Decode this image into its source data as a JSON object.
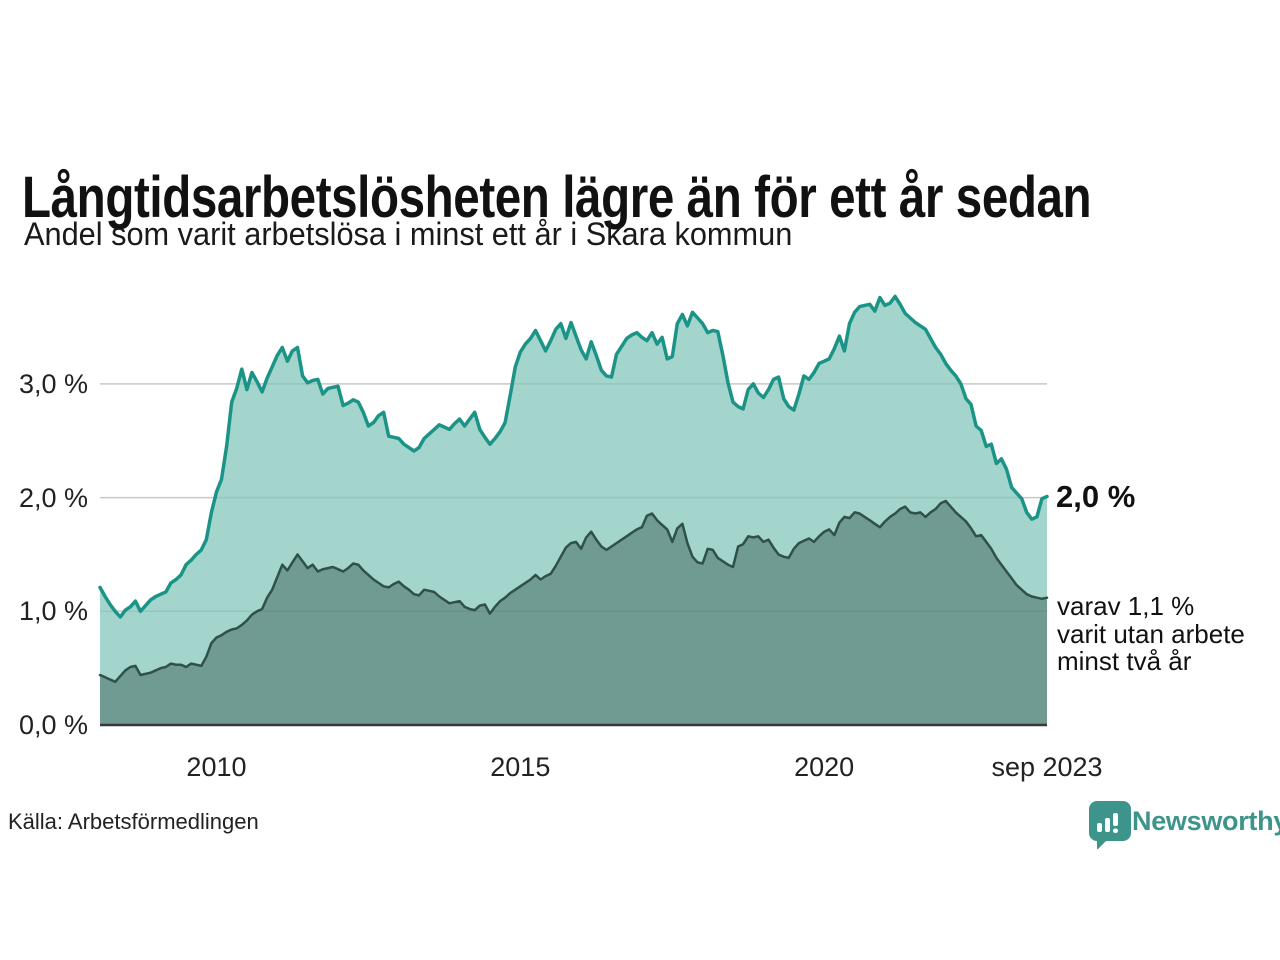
{
  "header": {
    "title": "Långtidsarbetslösheten lägre än för ett år sedan",
    "subtitle": "Andel som varit arbetslösa i minst ett år i Skara kommun"
  },
  "chart": {
    "y_ticks": [
      {
        "label": "3,0 %",
        "value": 3.0
      },
      {
        "label": "2,0 %",
        "value": 2.0
      },
      {
        "label": "1,0 %",
        "value": 1.0
      },
      {
        "label": "0,0 %",
        "value": 0.0
      }
    ],
    "x_ticks": [
      {
        "label": "2010",
        "month_index": 23
      },
      {
        "label": "2015",
        "month_index": 83
      },
      {
        "label": "2020",
        "month_index": 143
      },
      {
        "label": "sep 2023",
        "month_index": 187
      }
    ],
    "annotation_end": {
      "label": "2,0 %"
    },
    "annotation_sub": {
      "lines": [
        "varav 1,1 %",
        "varit utan arbete",
        "minst två år"
      ]
    },
    "colors": {
      "series_min1yr_fill": "#a3d5cd",
      "series_min1yr_line": "#1b9487",
      "series_min2yr_fill": "#6f9b93",
      "series_min2yr_line": "#30504a",
      "gridline": "#d9d9d9",
      "gridline_overlay": "rgba(60,60,60,0.10)",
      "baseline": "#383838"
    }
  },
  "chart_data": {
    "type": "area",
    "title": "Långtidsarbetslösheten lägre än för ett år sedan",
    "subtitle": "Andel som varit arbetslösa i minst ett år i Skara kommun",
    "unit": "%",
    "interval": "monthly",
    "x_start": "2008-02",
    "x_end": "2023-09",
    "ylim": [
      0,
      4
    ],
    "grid": "horizontal",
    "series": [
      {
        "name": "Andel arbetslösa minst ett år",
        "end_label": "2,0 %",
        "values": [
          1.21,
          1.13,
          1.06,
          1.0,
          0.95,
          1.01,
          1.04,
          1.09,
          1.0,
          1.05,
          1.1,
          1.13,
          1.15,
          1.17,
          1.25,
          1.28,
          1.32,
          1.41,
          1.45,
          1.5,
          1.54,
          1.63,
          1.87,
          2.05,
          2.16,
          2.45,
          2.84,
          2.96,
          3.13,
          2.95,
          3.1,
          3.02,
          2.93,
          3.05,
          3.15,
          3.25,
          3.32,
          3.2,
          3.29,
          3.32,
          3.07,
          3.01,
          3.03,
          3.04,
          2.91,
          2.96,
          2.97,
          2.98,
          2.81,
          2.83,
          2.86,
          2.84,
          2.75,
          2.63,
          2.66,
          2.72,
          2.75,
          2.54,
          2.53,
          2.52,
          2.47,
          2.44,
          2.41,
          2.44,
          2.52,
          2.56,
          2.6,
          2.64,
          2.62,
          2.6,
          2.65,
          2.69,
          2.63,
          2.69,
          2.75,
          2.6,
          2.53,
          2.47,
          2.52,
          2.58,
          2.66,
          2.9,
          3.15,
          3.28,
          3.35,
          3.4,
          3.47,
          3.38,
          3.29,
          3.38,
          3.48,
          3.53,
          3.4,
          3.54,
          3.42,
          3.3,
          3.22,
          3.37,
          3.25,
          3.12,
          3.07,
          3.06,
          3.26,
          3.33,
          3.4,
          3.43,
          3.45,
          3.41,
          3.38,
          3.45,
          3.35,
          3.41,
          3.22,
          3.24,
          3.53,
          3.61,
          3.51,
          3.63,
          3.58,
          3.53,
          3.45,
          3.47,
          3.46,
          3.25,
          3.01,
          2.84,
          2.8,
          2.78,
          2.95,
          3.0,
          2.92,
          2.88,
          2.95,
          3.04,
          3.06,
          2.87,
          2.8,
          2.77,
          2.91,
          3.07,
          3.04,
          3.1,
          3.18,
          3.2,
          3.22,
          3.31,
          3.42,
          3.29,
          3.53,
          3.63,
          3.68,
          3.69,
          3.7,
          3.64,
          3.76,
          3.69,
          3.71,
          3.77,
          3.7,
          3.62,
          3.58,
          3.54,
          3.51,
          3.48,
          3.4,
          3.32,
          3.26,
          3.18,
          3.12,
          3.07,
          3.0,
          2.87,
          2.82,
          2.63,
          2.59,
          2.45,
          2.47,
          2.3,
          2.34,
          2.25,
          2.09,
          2.04,
          1.99,
          1.87,
          1.81,
          1.83,
          1.99,
          2.01
        ]
      },
      {
        "name": "varav utan arbete minst två år",
        "end_label": "varav 1,1 % varit utan arbete minst två år",
        "values": [
          0.44,
          0.42,
          0.4,
          0.38,
          0.43,
          0.48,
          0.51,
          0.52,
          0.44,
          0.45,
          0.46,
          0.48,
          0.5,
          0.51,
          0.54,
          0.53,
          0.53,
          0.51,
          0.54,
          0.53,
          0.52,
          0.6,
          0.72,
          0.77,
          0.79,
          0.82,
          0.84,
          0.85,
          0.88,
          0.92,
          0.97,
          1.0,
          1.02,
          1.12,
          1.19,
          1.3,
          1.41,
          1.36,
          1.43,
          1.5,
          1.44,
          1.38,
          1.41,
          1.35,
          1.37,
          1.38,
          1.39,
          1.37,
          1.35,
          1.38,
          1.42,
          1.41,
          1.36,
          1.32,
          1.28,
          1.25,
          1.22,
          1.21,
          1.24,
          1.26,
          1.22,
          1.19,
          1.15,
          1.14,
          1.19,
          1.18,
          1.17,
          1.13,
          1.1,
          1.07,
          1.08,
          1.09,
          1.04,
          1.02,
          1.01,
          1.05,
          1.06,
          0.98,
          1.04,
          1.09,
          1.12,
          1.16,
          1.19,
          1.22,
          1.25,
          1.28,
          1.32,
          1.28,
          1.31,
          1.33,
          1.4,
          1.48,
          1.56,
          1.6,
          1.61,
          1.55,
          1.65,
          1.7,
          1.63,
          1.57,
          1.54,
          1.57,
          1.6,
          1.63,
          1.66,
          1.69,
          1.72,
          1.74,
          1.84,
          1.86,
          1.8,
          1.76,
          1.72,
          1.61,
          1.73,
          1.77,
          1.6,
          1.48,
          1.43,
          1.42,
          1.55,
          1.54,
          1.47,
          1.44,
          1.41,
          1.39,
          1.57,
          1.59,
          1.66,
          1.65,
          1.66,
          1.61,
          1.63,
          1.56,
          1.5,
          1.48,
          1.47,
          1.55,
          1.6,
          1.62,
          1.64,
          1.61,
          1.66,
          1.7,
          1.72,
          1.67,
          1.78,
          1.83,
          1.82,
          1.87,
          1.86,
          1.83,
          1.8,
          1.77,
          1.74,
          1.79,
          1.83,
          1.86,
          1.9,
          1.92,
          1.87,
          1.86,
          1.87,
          1.83,
          1.87,
          1.9,
          1.95,
          1.97,
          1.92,
          1.87,
          1.83,
          1.79,
          1.73,
          1.66,
          1.67,
          1.61,
          1.55,
          1.47,
          1.41,
          1.35,
          1.29,
          1.23,
          1.19,
          1.15,
          1.13,
          1.12,
          1.11,
          1.12
        ]
      }
    ]
  },
  "footer": {
    "source": "Källa: Arbetsförmedlingen",
    "logo_text": "Newsworthy"
  }
}
